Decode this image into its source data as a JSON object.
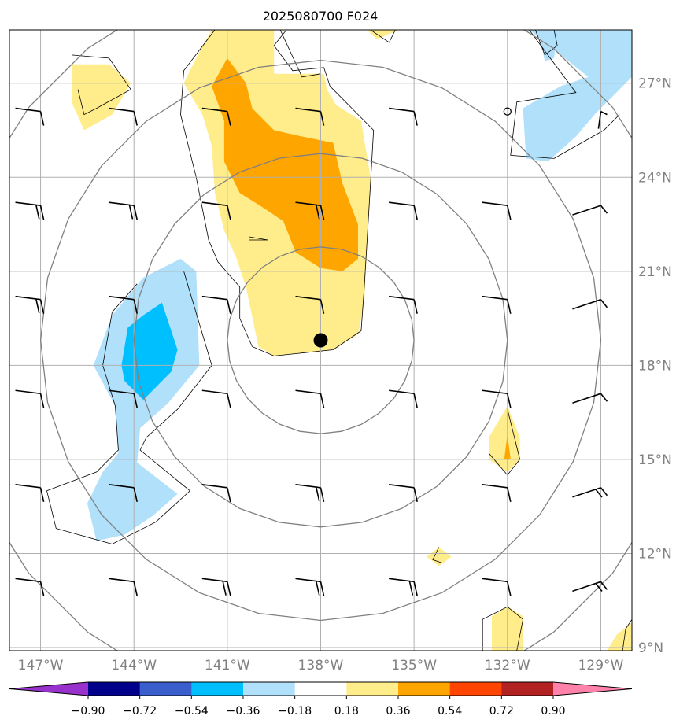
{
  "chart_data": {
    "type": "heatmap",
    "title": "2025080700 F024",
    "x_ticks": [
      "147°W",
      "144°W",
      "141°W",
      "138°W",
      "135°W",
      "132°W",
      "129°W"
    ],
    "y_ticks": [
      "27°N",
      "24°N",
      "21°N",
      "18°N",
      "15°N",
      "12°N",
      "9°N"
    ],
    "x_tick_values": [
      -147,
      -144,
      -141,
      -138,
      -135,
      -132,
      -129
    ],
    "y_tick_values": [
      27,
      24,
      21,
      18,
      15,
      12,
      9
    ],
    "xlim": [
      -148,
      -128
    ],
    "ylim": [
      8.9,
      28.7
    ],
    "grid": true,
    "storm_center": {
      "lon": -138,
      "lat": 18.8
    },
    "range_rings_deg": [
      3,
      6,
      9,
      12
    ],
    "colorbar": {
      "boundaries": [
        -0.9,
        -0.72,
        -0.54,
        -0.36,
        -0.18,
        0.18,
        0.36,
        0.54,
        0.72,
        0.9
      ],
      "tick_labels": [
        "−0.90",
        "−0.72",
        "−0.54",
        "−0.36",
        "−0.18",
        "0.18",
        "0.36",
        "0.54",
        "0.72",
        "0.90"
      ],
      "colors": [
        "#9932cc",
        "#00008b",
        "#3a5fcd",
        "#00bfff",
        "#b0e0fa",
        "#ffffff",
        "#ffec8b",
        "#ffa500",
        "#ff4500",
        "#b22222",
        "#ff82ab"
      ],
      "extend": "both"
    },
    "contour_regions": [
      {
        "level_color": "#ffec8b",
        "polygon": [
          [
            -141.5,
            28.7
          ],
          [
            -139.5,
            28.7
          ],
          [
            -139.5,
            27.3
          ],
          [
            -137.9,
            27.3
          ],
          [
            -137.8,
            26.8
          ],
          [
            -137.5,
            26.3
          ],
          [
            -136.7,
            25.8
          ],
          [
            -136.4,
            24.0
          ],
          [
            -136.6,
            20.0
          ],
          [
            -136.8,
            19.0
          ],
          [
            -137.6,
            18.5
          ],
          [
            -139.5,
            18.3
          ],
          [
            -140.0,
            18.6
          ],
          [
            -140.4,
            20.5
          ],
          [
            -140.7,
            21.4
          ],
          [
            -141.1,
            22.3
          ],
          [
            -141.4,
            23.5
          ],
          [
            -141.5,
            25.0
          ],
          [
            -141.8,
            26.0
          ],
          [
            -142.4,
            27.0
          ],
          [
            -141.9,
            28.0
          ]
        ]
      },
      {
        "level_color": "#ffa500",
        "polygon": [
          [
            -141.0,
            27.8
          ],
          [
            -140.4,
            27.0
          ],
          [
            -140.2,
            26.2
          ],
          [
            -139.5,
            25.5
          ],
          [
            -138.6,
            25.3
          ],
          [
            -137.6,
            25.1
          ],
          [
            -137.3,
            23.8
          ],
          [
            -136.8,
            22.5
          ],
          [
            -136.8,
            21.4
          ],
          [
            -137.3,
            21.0
          ],
          [
            -138.0,
            21.1
          ],
          [
            -138.8,
            21.6
          ],
          [
            -139.2,
            22.6
          ],
          [
            -139.8,
            23.0
          ],
          [
            -140.6,
            23.5
          ],
          [
            -141.1,
            24.5
          ],
          [
            -141.1,
            25.8
          ],
          [
            -141.5,
            26.9
          ]
        ]
      },
      {
        "level_color": "#ffec8b",
        "polygon": [
          [
            -146.0,
            27.6
          ],
          [
            -144.8,
            27.6
          ],
          [
            -144.1,
            27.0
          ],
          [
            -144.7,
            26.0
          ],
          [
            -145.6,
            25.5
          ],
          [
            -146.0,
            26.4
          ]
        ]
      },
      {
        "level_color": "#b0e0fa",
        "polygon": [
          [
            -142.5,
            21.4
          ],
          [
            -142.0,
            21.0
          ],
          [
            -141.9,
            18.0
          ],
          [
            -142.9,
            16.8
          ],
          [
            -143.8,
            16.0
          ],
          [
            -143.9,
            14.9
          ],
          [
            -142.6,
            13.9
          ],
          [
            -143.4,
            13.2
          ],
          [
            -144.3,
            12.6
          ],
          [
            -145.2,
            12.4
          ],
          [
            -145.5,
            13.6
          ],
          [
            -145.0,
            14.6
          ],
          [
            -144.5,
            15.2
          ],
          [
            -144.6,
            16.7
          ],
          [
            -145.3,
            18.0
          ],
          [
            -144.7,
            19.6
          ],
          [
            -143.7,
            20.8
          ]
        ]
      },
      {
        "level_color": "#00bfff",
        "polygon": [
          [
            -143.1,
            20.0
          ],
          [
            -142.6,
            18.5
          ],
          [
            -142.8,
            17.8
          ],
          [
            -143.7,
            16.9
          ],
          [
            -144.3,
            17.5
          ],
          [
            -144.4,
            18.0
          ],
          [
            -144.2,
            19.2
          ],
          [
            -143.7,
            19.6
          ]
        ]
      },
      {
        "level_color": "#b0e0fa",
        "polygon": [
          [
            -131.3,
            28.7
          ],
          [
            -128.0,
            28.7
          ],
          [
            -128.0,
            27.2
          ],
          [
            -129.2,
            26.0
          ],
          [
            -129.8,
            25.3
          ],
          [
            -130.7,
            24.5
          ],
          [
            -131.4,
            24.6
          ],
          [
            -131.5,
            26.2
          ],
          [
            -130.3,
            26.9
          ],
          [
            -129.4,
            27.2
          ]
        ]
      },
      {
        "level_color": "#b0e0fa",
        "polygon": [
          [
            -131.0,
            28.7
          ],
          [
            -130.4,
            28.7
          ],
          [
            -130.5,
            27.8
          ],
          [
            -130.8,
            27.7
          ]
        ]
      },
      {
        "level_color": "#ffec8b",
        "polygon": [
          [
            -132.0,
            16.7
          ],
          [
            -131.6,
            15.7
          ],
          [
            -131.6,
            15.0
          ],
          [
            -132.0,
            14.6
          ],
          [
            -132.6,
            15.0
          ],
          [
            -132.6,
            15.7
          ]
        ]
      },
      {
        "level_color": "#ffa500",
        "polygon": [
          [
            -132.0,
            15.8
          ],
          [
            -131.9,
            15.0
          ],
          [
            -132.1,
            15.0
          ]
        ]
      },
      {
        "level_color": "#ffec8b",
        "polygon": [
          [
            -134.2,
            12.2
          ],
          [
            -133.8,
            11.9
          ],
          [
            -134.2,
            11.6
          ],
          [
            -134.6,
            11.9
          ]
        ]
      },
      {
        "level_color": "#ffec8b",
        "polygon": [
          [
            -132.5,
            8.9
          ],
          [
            -131.5,
            8.9
          ],
          [
            -131.5,
            10.0
          ],
          [
            -132.0,
            10.3
          ],
          [
            -132.5,
            10.0
          ]
        ]
      },
      {
        "level_color": "#ffec8b",
        "polygon": [
          [
            -128.8,
            8.9
          ],
          [
            -128.0,
            8.9
          ],
          [
            -128.0,
            9.8
          ],
          [
            -128.5,
            9.4
          ]
        ]
      },
      {
        "level_color": "#ffec8b",
        "polygon": [
          [
            -136.5,
            28.7
          ],
          [
            -135.5,
            28.7
          ],
          [
            -136.2,
            28.4
          ]
        ]
      }
    ],
    "contour_lines": [
      [
        [
          -141.4,
          28.7
        ],
        [
          -142.4,
          27.4
        ],
        [
          -142.5,
          26.0
        ],
        [
          -142.0,
          24.0
        ],
        [
          -141.6,
          22.0
        ],
        [
          -141.3,
          21.3
        ],
        [
          -140.6,
          20.5
        ],
        [
          -140.6,
          19.5
        ],
        [
          -140.2,
          18.6
        ],
        [
          -139.5,
          18.3
        ],
        [
          -137.6,
          18.5
        ],
        [
          -136.7,
          19.1
        ],
        [
          -136.6,
          20.5
        ],
        [
          -136.4,
          23.8
        ],
        [
          -136.3,
          25.5
        ],
        [
          -137.0,
          26.2
        ],
        [
          -137.7,
          26.9
        ],
        [
          -137.9,
          27.5
        ],
        [
          -138.9,
          27.4
        ],
        [
          -139.5,
          28.2
        ],
        [
          -139.1,
          28.7
        ]
      ],
      [
        [
          -146.0,
          27.9
        ],
        [
          -144.8,
          27.8
        ],
        [
          -144.1,
          26.8
        ],
        [
          -145.2,
          26.2
        ],
        [
          -145.6,
          26.0
        ],
        [
          -145.8,
          26.8
        ]
      ],
      [
        [
          -142.4,
          21.0
        ],
        [
          -141.5,
          18.0
        ],
        [
          -142.6,
          16.6
        ],
        [
          -143.6,
          15.7
        ],
        [
          -143.8,
          15.3
        ],
        [
          -142.2,
          14.0
        ],
        [
          -143.3,
          13.0
        ],
        [
          -144.7,
          12.3
        ],
        [
          -146.5,
          12.8
        ],
        [
          -146.8,
          14.0
        ],
        [
          -145.2,
          14.6
        ],
        [
          -144.5,
          15.3
        ],
        [
          -144.6,
          16.7
        ],
        [
          -145.0,
          18.0
        ],
        [
          -144.7,
          19.7
        ],
        [
          -143.9,
          20.6
        ]
      ],
      [
        [
          -131.3,
          28.7
        ],
        [
          -129.8,
          26.7
        ],
        [
          -131.7,
          26.4
        ],
        [
          -131.9,
          24.7
        ],
        [
          -130.5,
          24.6
        ],
        [
          -128.9,
          25.5
        ],
        [
          -128.4,
          26.0
        ]
      ],
      [
        [
          -131.1,
          28.7
        ],
        [
          -130.8,
          27.9
        ],
        [
          -130.4,
          28.2
        ],
        [
          -130.5,
          28.7
        ]
      ],
      [
        [
          -132.0,
          16.6
        ],
        [
          -131.6,
          15.0
        ],
        [
          -132.0,
          14.5
        ],
        [
          -132.6,
          15.2
        ]
      ],
      [
        [
          -132.8,
          8.9
        ],
        [
          -132.8,
          9.9
        ],
        [
          -132.0,
          10.3
        ],
        [
          -131.5,
          9.9
        ],
        [
          -131.7,
          8.9
        ]
      ],
      [
        [
          -134.2,
          12.2
        ],
        [
          -134.4,
          11.8
        ],
        [
          -134.1,
          11.7
        ]
      ],
      [
        [
          -140.3,
          22.1
        ],
        [
          -139.7,
          22.0
        ],
        [
          -140.3,
          22.0
        ]
      ],
      [
        [
          -139.3,
          28.7
        ],
        [
          -138.6,
          27.2
        ],
        [
          -138.0,
          27.3
        ]
      ],
      [
        [
          -136.4,
          28.7
        ],
        [
          -135.8,
          28.3
        ],
        [
          -135.6,
          28.7
        ]
      ],
      [
        [
          -128.3,
          8.9
        ],
        [
          -128.2,
          9.6
        ],
        [
          -128.0,
          9.9
        ]
      ]
    ],
    "wind_barbs": [
      {
        "lon": -147,
        "lat": 26.1,
        "dir": "ne",
        "barbs": 1
      },
      {
        "lon": -144,
        "lat": 26.1,
        "dir": "ne",
        "barbs": 1
      },
      {
        "lon": -141,
        "lat": 26.1,
        "dir": "ne",
        "barbs": 1
      },
      {
        "lon": -138,
        "lat": 26.1,
        "dir": "ne",
        "barbs": 1
      },
      {
        "lon": -135,
        "lat": 26.1,
        "dir": "ne",
        "barbs": 1
      },
      {
        "lon": -147,
        "lat": 23.1,
        "dir": "ne",
        "barbs": 2
      },
      {
        "lon": -144,
        "lat": 23.1,
        "dir": "ne",
        "barbs": 2
      },
      {
        "lon": -141,
        "lat": 23.1,
        "dir": "ne",
        "barbs": 1
      },
      {
        "lon": -138,
        "lat": 23.1,
        "dir": "ne",
        "barbs": 2
      },
      {
        "lon": -135,
        "lat": 23.1,
        "dir": "ne",
        "barbs": 1
      },
      {
        "lon": -132,
        "lat": 23.1,
        "dir": "ne",
        "barbs": 1
      },
      {
        "lon": -129,
        "lat": 23.1,
        "dir": "e",
        "barbs": 1
      },
      {
        "lon": -147,
        "lat": 20.1,
        "dir": "ne",
        "barbs": 2
      },
      {
        "lon": -144,
        "lat": 20.1,
        "dir": "ne",
        "barbs": 1
      },
      {
        "lon": -141,
        "lat": 20.1,
        "dir": "ne",
        "barbs": 1
      },
      {
        "lon": -138,
        "lat": 20.1,
        "dir": "ne",
        "barbs": 1
      },
      {
        "lon": -135,
        "lat": 20.1,
        "dir": "ne",
        "barbs": 1
      },
      {
        "lon": -132,
        "lat": 20.1,
        "dir": "ne",
        "barbs": 1
      },
      {
        "lon": -129,
        "lat": 20.1,
        "dir": "e",
        "barbs": 1
      },
      {
        "lon": -147,
        "lat": 17.1,
        "dir": "ne",
        "barbs": 1
      },
      {
        "lon": -144,
        "lat": 17.1,
        "dir": "ne",
        "barbs": 1
      },
      {
        "lon": -141,
        "lat": 17.1,
        "dir": "ne",
        "barbs": 1
      },
      {
        "lon": -138,
        "lat": 17.1,
        "dir": "ne",
        "barbs": 1
      },
      {
        "lon": -135,
        "lat": 17.1,
        "dir": "ne",
        "barbs": 1
      },
      {
        "lon": -132,
        "lat": 17.1,
        "dir": "ne",
        "barbs": 1
      },
      {
        "lon": -129,
        "lat": 17.1,
        "dir": "e",
        "barbs": 1
      },
      {
        "lon": -147,
        "lat": 14.1,
        "dir": "ne",
        "barbs": 1
      },
      {
        "lon": -144,
        "lat": 14.1,
        "dir": "ne",
        "barbs": 1
      },
      {
        "lon": -141,
        "lat": 14.1,
        "dir": "ne",
        "barbs": 1
      },
      {
        "lon": -138,
        "lat": 14.1,
        "dir": "ne",
        "barbs": 2
      },
      {
        "lon": -135,
        "lat": 14.1,
        "dir": "ne",
        "barbs": 1
      },
      {
        "lon": -132,
        "lat": 14.1,
        "dir": "ne",
        "barbs": 1
      },
      {
        "lon": -129,
        "lat": 14.1,
        "dir": "e",
        "barbs": 2
      },
      {
        "lon": -147,
        "lat": 11.1,
        "dir": "ne",
        "barbs": 1
      },
      {
        "lon": -144,
        "lat": 11.1,
        "dir": "ne",
        "barbs": 1
      },
      {
        "lon": -141,
        "lat": 11.1,
        "dir": "ne",
        "barbs": 2
      },
      {
        "lon": -138,
        "lat": 11.1,
        "dir": "ne",
        "barbs": 2
      },
      {
        "lon": -135,
        "lat": 11.1,
        "dir": "ne",
        "barbs": 2
      },
      {
        "lon": -132,
        "lat": 11.1,
        "dir": "ne",
        "barbs": 1
      },
      {
        "lon": -129,
        "lat": 11.1,
        "dir": "e",
        "barbs": 2
      }
    ],
    "calm_markers": [
      {
        "lon": -132,
        "lat": 26.1
      }
    ],
    "extra_barbs": [
      {
        "lon": -129,
        "lat": 26.1,
        "dir": "n",
        "barbs": 1
      }
    ]
  }
}
